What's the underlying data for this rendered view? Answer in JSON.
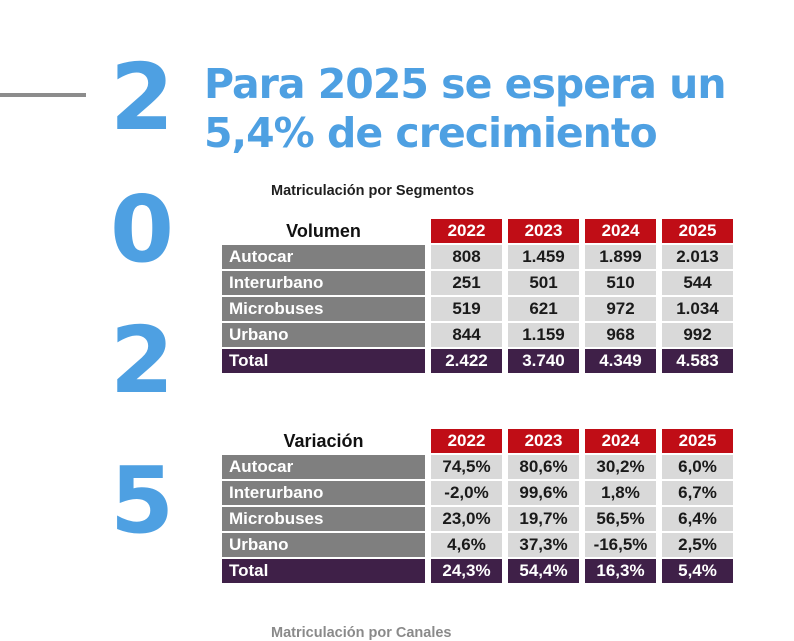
{
  "slide": {
    "digits": [
      "2",
      "0",
      "2",
      "5"
    ],
    "title_line1": "Para 2025 se espera un",
    "title_line2": "5,4% de crecimiento",
    "section_title": "Matriculación por Segmentos",
    "next_section_title_partial": "Matriculación por Canales"
  },
  "colors": {
    "accent_blue": "#4ea0e2",
    "year_header_red": "#c00d16",
    "row_label_gray": "#7f7f7f",
    "value_cell_gray": "#d9d9d9",
    "total_row_purple": "#3f2048"
  },
  "tables": [
    {
      "name": "Volumen",
      "years": [
        "2022",
        "2023",
        "2024",
        "2025"
      ],
      "rows": [
        {
          "label": "Autocar",
          "values": [
            "808",
            "1.459",
            "1.899",
            "2.013"
          ]
        },
        {
          "label": "Interurbano",
          "values": [
            "251",
            "501",
            "510",
            "544"
          ]
        },
        {
          "label": "Microbuses",
          "values": [
            "519",
            "621",
            "972",
            "1.034"
          ]
        },
        {
          "label": "Urbano",
          "values": [
            "844",
            "1.159",
            "968",
            "992"
          ]
        }
      ],
      "total_label": "Total",
      "total_values": [
        "2.422",
        "3.740",
        "4.349",
        "4.583"
      ]
    },
    {
      "name": "Variación",
      "years": [
        "2022",
        "2023",
        "2024",
        "2025"
      ],
      "rows": [
        {
          "label": "Autocar",
          "values": [
            "74,5%",
            "80,6%",
            "30,2%",
            "6,0%"
          ]
        },
        {
          "label": "Interurbano",
          "values": [
            "-2,0%",
            "99,6%",
            "1,8%",
            "6,7%"
          ]
        },
        {
          "label": "Microbuses",
          "values": [
            "23,0%",
            "19,7%",
            "56,5%",
            "6,4%"
          ]
        },
        {
          "label": "Urbano",
          "values": [
            "4,6%",
            "37,3%",
            "-16,5%",
            "2,5%"
          ]
        }
      ],
      "total_label": "Total",
      "total_values": [
        "24,3%",
        "54,4%",
        "16,3%",
        "5,4%"
      ]
    }
  ]
}
